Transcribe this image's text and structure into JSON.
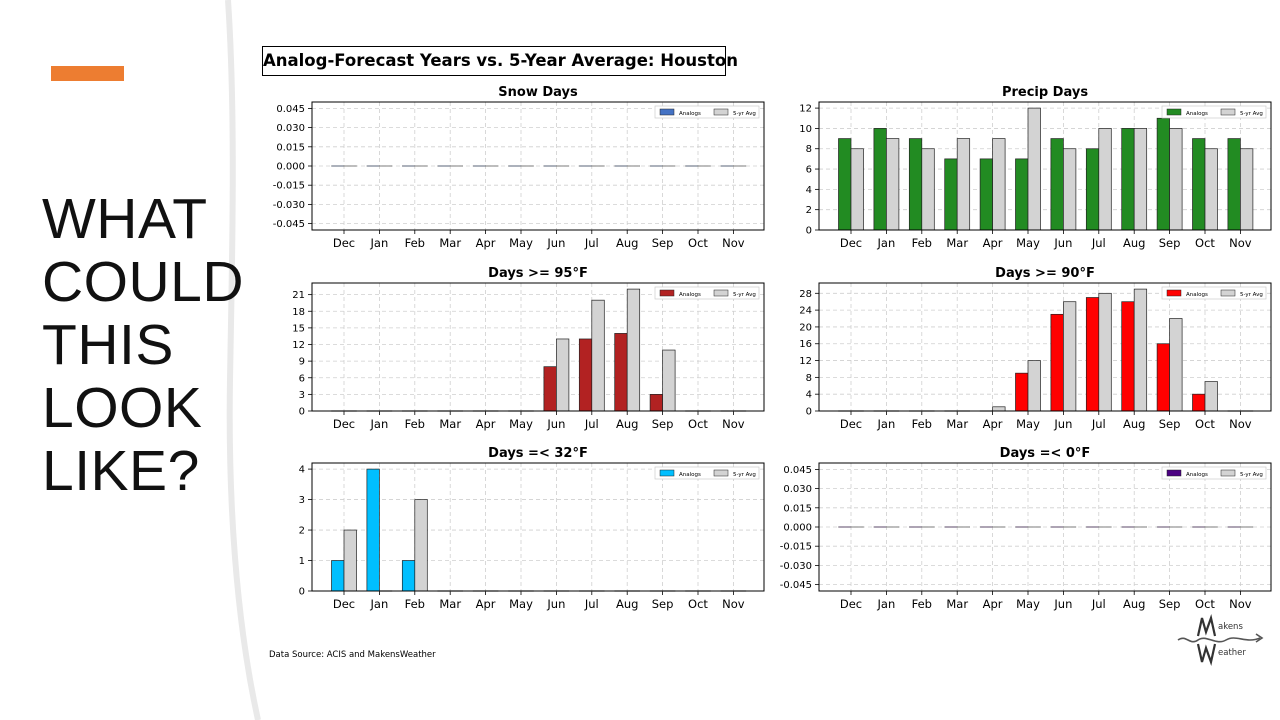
{
  "slide": {
    "heading_lines": [
      "WHAT",
      "COULD",
      "THIS",
      "LOOK",
      "LIKE?"
    ],
    "main_title": "Analog-Forecast Years vs. 5-Year Average: Houston",
    "source_note": "Data Source: ACIS and MakensWeather",
    "logo_text_top": "akens",
    "logo_text_bottom": "eather",
    "accent_color": "#ED7D31"
  },
  "chart_data": [
    {
      "type": "bar",
      "title": "Snow Days",
      "categories": [
        "Dec",
        "Jan",
        "Feb",
        "Mar",
        "Apr",
        "May",
        "Jun",
        "Jul",
        "Aug",
        "Sep",
        "Oct",
        "Nov"
      ],
      "ylim": [
        -0.05,
        0.05
      ],
      "yticks": [
        -0.045,
        -0.03,
        -0.015,
        0.0,
        0.015,
        0.03,
        0.045
      ],
      "ytick_labels": [
        "-0.045",
        "-0.030",
        "-0.015",
        "0.000",
        "0.015",
        "0.030",
        "0.045"
      ],
      "grid": true,
      "legend": "top-right",
      "series": [
        {
          "name": "Analogs",
          "color": "#4472C4",
          "values": [
            0,
            0,
            0,
            0,
            0,
            0,
            0,
            0,
            0,
            0,
            0,
            0
          ]
        },
        {
          "name": "5-yr Avg",
          "color": "#D3D3D3",
          "values": [
            0,
            0,
            0,
            0,
            0,
            0,
            0,
            0,
            0,
            0,
            0,
            0
          ]
        }
      ]
    },
    {
      "type": "bar",
      "title": "Precip Days",
      "categories": [
        "Dec",
        "Jan",
        "Feb",
        "Mar",
        "Apr",
        "May",
        "Jun",
        "Jul",
        "Aug",
        "Sep",
        "Oct",
        "Nov"
      ],
      "ylim": [
        0,
        12.6
      ],
      "yticks": [
        0,
        2,
        4,
        6,
        8,
        10,
        12
      ],
      "ytick_labels": [
        "0",
        "2",
        "4",
        "6",
        "8",
        "10",
        "12"
      ],
      "grid": true,
      "legend": "top-right",
      "series": [
        {
          "name": "Analogs",
          "color": "#228B22",
          "values": [
            9,
            10,
            9,
            7,
            7,
            7,
            9,
            8,
            10,
            11,
            9,
            9
          ]
        },
        {
          "name": "5-yr Avg",
          "color": "#D3D3D3",
          "values": [
            8,
            9,
            8,
            9,
            9,
            12,
            8,
            10,
            10,
            10,
            8,
            8
          ]
        }
      ]
    },
    {
      "type": "bar",
      "title": "Days >= 95°F",
      "categories": [
        "Dec",
        "Jan",
        "Feb",
        "Mar",
        "Apr",
        "May",
        "Jun",
        "Jul",
        "Aug",
        "Sep",
        "Oct",
        "Nov"
      ],
      "ylim": [
        0,
        23.1
      ],
      "yticks": [
        0,
        3,
        6,
        9,
        12,
        15,
        18,
        21
      ],
      "ytick_labels": [
        "0",
        "3",
        "6",
        "9",
        "12",
        "15",
        "18",
        "21"
      ],
      "grid": true,
      "legend": "top-right",
      "series": [
        {
          "name": "Analogs",
          "color": "#B22222",
          "values": [
            0,
            0,
            0,
            0,
            0,
            0,
            8,
            13,
            14,
            3,
            0,
            0
          ]
        },
        {
          "name": "5-yr Avg",
          "color": "#D3D3D3",
          "values": [
            0,
            0,
            0,
            0,
            0,
            0,
            13,
            20,
            22,
            11,
            0,
            0
          ]
        }
      ]
    },
    {
      "type": "bar",
      "title": "Days >= 90°F",
      "categories": [
        "Dec",
        "Jan",
        "Feb",
        "Mar",
        "Apr",
        "May",
        "Jun",
        "Jul",
        "Aug",
        "Sep",
        "Oct",
        "Nov"
      ],
      "ylim": [
        0,
        30.45
      ],
      "yticks": [
        0,
        4,
        8,
        12,
        16,
        20,
        24,
        28
      ],
      "ytick_labels": [
        "0",
        "4",
        "8",
        "12",
        "16",
        "20",
        "24",
        "28"
      ],
      "grid": true,
      "legend": "top-right",
      "series": [
        {
          "name": "Analogs",
          "color": "#FF0000",
          "values": [
            0,
            0,
            0,
            0,
            0,
            9,
            23,
            27,
            26,
            16,
            4,
            0
          ]
        },
        {
          "name": "5-yr Avg",
          "color": "#D3D3D3",
          "values": [
            0,
            0,
            0,
            0,
            1,
            12,
            26,
            28,
            29,
            22,
            7,
            0
          ]
        }
      ]
    },
    {
      "type": "bar",
      "title": "Days =< 32°F",
      "categories": [
        "Dec",
        "Jan",
        "Feb",
        "Mar",
        "Apr",
        "May",
        "Jun",
        "Jul",
        "Aug",
        "Sep",
        "Oct",
        "Nov"
      ],
      "ylim": [
        0,
        4.2
      ],
      "yticks": [
        0,
        1,
        2,
        3,
        4
      ],
      "ytick_labels": [
        "0",
        "1",
        "2",
        "3",
        "4"
      ],
      "grid": true,
      "legend": "top-right",
      "series": [
        {
          "name": "Analogs",
          "color": "#00BFFF",
          "values": [
            1,
            4,
            1,
            0,
            0,
            0,
            0,
            0,
            0,
            0,
            0,
            0
          ]
        },
        {
          "name": "5-yr Avg",
          "color": "#D3D3D3",
          "values": [
            2,
            0,
            3,
            0,
            0,
            0,
            0,
            0,
            0,
            0,
            0,
            0
          ]
        }
      ]
    },
    {
      "type": "bar",
      "title": "Days =< 0°F",
      "categories": [
        "Dec",
        "Jan",
        "Feb",
        "Mar",
        "Apr",
        "May",
        "Jun",
        "Jul",
        "Aug",
        "Sep",
        "Oct",
        "Nov"
      ],
      "ylim": [
        -0.05,
        0.05
      ],
      "yticks": [
        -0.045,
        -0.03,
        -0.015,
        0.0,
        0.015,
        0.03,
        0.045
      ],
      "ytick_labels": [
        "-0.045",
        "-0.030",
        "-0.015",
        "0.000",
        "0.015",
        "0.030",
        "0.045"
      ],
      "grid": true,
      "legend": "top-right",
      "series": [
        {
          "name": "Analogs",
          "color": "#4B0082",
          "values": [
            0,
            0,
            0,
            0,
            0,
            0,
            0,
            0,
            0,
            0,
            0,
            0
          ]
        },
        {
          "name": "5-yr Avg",
          "color": "#D3D3D3",
          "values": [
            0,
            0,
            0,
            0,
            0,
            0,
            0,
            0,
            0,
            0,
            0,
            0
          ]
        }
      ]
    }
  ]
}
